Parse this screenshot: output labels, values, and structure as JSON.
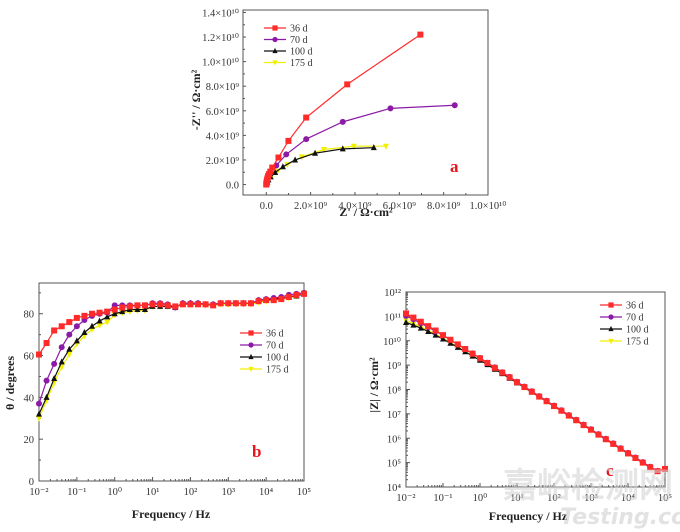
{
  "colors": {
    "36 d": "#ff2a2a",
    "70 d": "#8b1aa6",
    "100 d": "#111111",
    "175 d": "#f2f000",
    "panel_label": "#e8141c"
  },
  "watermark": {
    "cn": "嘉峪检测网",
    "en": "Testing.com"
  },
  "chart_data": [
    {
      "type": "line",
      "panel": "a",
      "title": "",
      "xlabel": "Z' / Ω·cm²",
      "ylabel": "-Z'' / Ω·cm²",
      "xlim": [
        -1050000000.0,
        10000000000.0
      ],
      "ylim": [
        -850000000.0,
        14200000000.0
      ],
      "xticks": [
        0,
        2000000000.0,
        4000000000.0,
        6000000000.0,
        8000000000.0,
        10000000000.0
      ],
      "xtick_labels": [
        "0.0",
        "2.0×10⁹",
        "4.0×10⁹",
        "6.0×10⁹",
        "8.0×10⁹",
        "1.0×10¹⁰"
      ],
      "yticks": [
        0,
        2000000000.0,
        4000000000.0,
        6000000000.0,
        8000000000.0,
        10000000000.0,
        12000000000.0,
        14000000000.0
      ],
      "ytick_labels": [
        "0.0",
        "2.0×10⁹",
        "4.0×10⁹",
        "6.0×10⁹",
        "8.0×10⁹",
        "1.0×10¹⁰",
        "1.2×10¹⁰",
        "1.4×10¹⁰"
      ],
      "legend": "top-left",
      "series": [
        {
          "name": "36 d",
          "marker": "square",
          "x": [
            0,
            5000000.0,
            10000000.0,
            20000000.0,
            30000000.0,
            50000000.0,
            80000000.0,
            120000000.0,
            180000000.0,
            270000000.0,
            550000000.0,
            1000000000.0,
            1800000000.0,
            3650000000.0,
            6950000000.0
          ],
          "y": [
            0,
            50000000.0,
            120000000.0,
            220000000.0,
            350000000.0,
            500000000.0,
            680000000.0,
            850000000.0,
            1050000000.0,
            1380000000.0,
            2200000000.0,
            3550000000.0,
            5450000000.0,
            8150000000.0,
            12200000000.0
          ]
        },
        {
          "name": "70 d",
          "marker": "circle",
          "x": [
            20000000.0,
            50000000.0,
            100000000.0,
            200000000.0,
            450000000.0,
            900000000.0,
            1800000000.0,
            3450000000.0,
            5600000000.0,
            8500000000.0
          ],
          "y": [
            150000000.0,
            350000000.0,
            600000000.0,
            1000000000.0,
            1550000000.0,
            2450000000.0,
            3700000000.0,
            5100000000.0,
            6200000000.0,
            6450000000.0
          ]
        },
        {
          "name": "100 d",
          "marker": "triangle-up",
          "x": [
            20000000.0,
            50000000.0,
            100000000.0,
            200000000.0,
            400000000.0,
            750000000.0,
            1300000000.0,
            2200000000.0,
            3450000000.0,
            4850000000.0
          ],
          "y": [
            100000000.0,
            200000000.0,
            380000000.0,
            620000000.0,
            980000000.0,
            1450000000.0,
            2000000000.0,
            2550000000.0,
            2900000000.0,
            3000000000.0
          ]
        },
        {
          "name": "175 d",
          "marker": "triangle-down",
          "x": [
            20000000.0,
            50000000.0,
            120000000.0,
            250000000.0,
            500000000.0,
            950000000.0,
            1600000000.0,
            2600000000.0,
            3950000000.0,
            5400000000.0
          ],
          "y": [
            100000000.0,
            220000000.0,
            420000000.0,
            720000000.0,
            1080000000.0,
            1620000000.0,
            2250000000.0,
            2850000000.0,
            3120000000.0,
            3120000000.0
          ]
        }
      ]
    },
    {
      "type": "line",
      "panel": "b",
      "title": "",
      "xlabel": "Frequency / Hz",
      "ylabel": "θ / degrees",
      "xscale": "log",
      "xlim": [
        0.01,
        100000
      ],
      "ylim": [
        0,
        94.7
      ],
      "xtick_labels": [
        "10⁻²",
        "10⁻¹",
        "10⁰",
        "10¹",
        "10²",
        "10³",
        "10⁴",
        "10⁵"
      ],
      "yticks": [
        0,
        20,
        40,
        60,
        80
      ],
      "ytick_labels": [
        "0",
        "20",
        "40",
        "60",
        "80"
      ],
      "legend": "right",
      "x_log_start": -2,
      "x_points_per_decade": 5,
      "series": [
        {
          "name": "36 d",
          "marker": "square",
          "values": [
            60.5,
            66,
            72,
            74,
            76,
            78,
            79,
            80,
            80.5,
            81,
            82,
            83,
            83.5,
            84,
            84,
            84.5,
            84.5,
            84,
            83.5,
            84.5,
            84.5,
            84.5,
            84.5,
            84,
            85,
            85,
            85,
            85,
            85,
            86,
            86.5,
            86.5,
            87,
            88,
            89,
            89.5
          ]
        },
        {
          "name": "70 d",
          "marker": "circle",
          "values": [
            37,
            48,
            56,
            64,
            70,
            74,
            77,
            79,
            80,
            80.5,
            84,
            84,
            84,
            84,
            84,
            85,
            85,
            84.5,
            83,
            85,
            85,
            85,
            84.5,
            84.5,
            85,
            85,
            85,
            85,
            85,
            86.5,
            87,
            87.5,
            88,
            89,
            89.5,
            90
          ]
        },
        {
          "name": "100 d",
          "marker": "triangle-up",
          "values": [
            32,
            40,
            49,
            57,
            63,
            67,
            71,
            74,
            76.5,
            78.5,
            80,
            81,
            82,
            82,
            82,
            83.5,
            83.5,
            83.5,
            83,
            85,
            85,
            85,
            84.5,
            84.5,
            85,
            85,
            85,
            85,
            85,
            86,
            86.5,
            87,
            87.5,
            88,
            88.5,
            89.5
          ]
        },
        {
          "name": "175 d",
          "marker": "triangle-down",
          "values": [
            30,
            38.5,
            47,
            54.5,
            60.5,
            65.5,
            69.5,
            72.5,
            74.5,
            76,
            79.5,
            80.5,
            81,
            81.5,
            81.5,
            83.5,
            83.5,
            83.5,
            83,
            84.5,
            84.5,
            84.5,
            84,
            84,
            84.5,
            84.5,
            84.5,
            84.5,
            84.5,
            85.5,
            86,
            86.5,
            87,
            87.5,
            88.5,
            90
          ]
        }
      ]
    },
    {
      "type": "line",
      "panel": "c",
      "title": "",
      "xlabel": "Frequency / Hz",
      "ylabel": "|Z| / Ω·cm²",
      "xscale": "log",
      "yscale": "log",
      "xlim": [
        0.01,
        100000
      ],
      "ylim": [
        10000,
        1000000000000
      ],
      "xtick_labels": [
        "10⁻²",
        "10⁻¹",
        "10⁰",
        "10¹",
        "10²",
        "10³",
        "10⁴",
        "10⁵"
      ],
      "ytick_labels": [
        "10⁴",
        "10⁵",
        "10⁶",
        "10⁷",
        "10⁸",
        "10⁹",
        "10¹⁰",
        "10¹¹",
        "10¹²"
      ],
      "legend": "top-right",
      "x_log_start": -2,
      "x_points_per_decade": 5,
      "series": [
        {
          "name": "36 d",
          "marker": "square",
          "log10_values": [
            11.12,
            10.95,
            10.78,
            10.6,
            10.42,
            10.23,
            10.04,
            9.85,
            9.66,
            9.47,
            9.28,
            9.09,
            8.89,
            8.69,
            8.5,
            8.3,
            8.1,
            7.91,
            7.71,
            7.52,
            7.32,
            7.13,
            6.93,
            6.74,
            6.54,
            6.35,
            6.15,
            5.96,
            5.77,
            5.57,
            5.38,
            5.19,
            5.0,
            4.81,
            4.62,
            4.74
          ]
        },
        {
          "name": "70 d",
          "marker": "circle",
          "log10_values": [
            11.02,
            10.88,
            10.72,
            10.56,
            10.39,
            10.22,
            10.03,
            9.85,
            9.66,
            9.48,
            9.29,
            9.1,
            8.91,
            8.71,
            8.52,
            8.32,
            8.12,
            7.93,
            7.73,
            7.54,
            7.34,
            7.15,
            6.95,
            6.76,
            6.56,
            6.37,
            6.17,
            5.98,
            5.79,
            5.59,
            5.4,
            5.21,
            5.02,
            4.83,
            4.64,
            4.75
          ]
        },
        {
          "name": "100 d",
          "marker": "triangle-up",
          "log10_values": [
            10.75,
            10.64,
            10.52,
            10.38,
            10.23,
            10.07,
            9.9,
            9.73,
            9.55,
            9.37,
            9.2,
            9.02,
            8.83,
            8.65,
            8.46,
            8.27,
            8.08,
            7.89,
            7.7,
            7.51,
            7.31,
            7.12,
            6.92,
            6.73,
            6.53,
            6.34,
            6.14,
            5.95,
            5.76,
            5.56,
            5.37,
            5.18,
            4.99,
            4.8,
            4.61,
            4.73
          ]
        },
        {
          "name": "175 d",
          "marker": "triangle-down",
          "log10_values": [
            10.82,
            10.7,
            10.57,
            10.42,
            10.27,
            10.1,
            9.93,
            9.75,
            9.57,
            9.39,
            9.21,
            9.03,
            8.84,
            8.66,
            8.47,
            8.28,
            8.09,
            7.9,
            7.7,
            7.51,
            7.32,
            7.12,
            6.93,
            6.73,
            6.54,
            6.34,
            6.15,
            5.95,
            5.76,
            5.57,
            5.37,
            5.18,
            4.99,
            4.8,
            4.61,
            4.73
          ]
        }
      ]
    }
  ],
  "panels": {
    "a": "a",
    "b": "b",
    "c": "c"
  },
  "legend_labels": [
    "36 d",
    "70 d",
    "100 d",
    "175 d"
  ]
}
